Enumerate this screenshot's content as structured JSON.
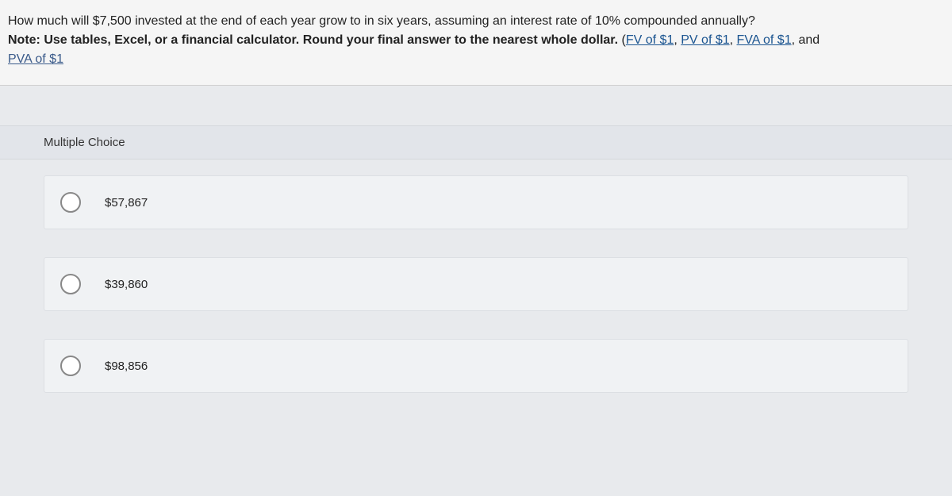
{
  "question": {
    "main_text": "How much will $7,500 invested at the end of each year grow to in six years, assuming an interest rate of 10% compounded annually?",
    "note_prefix": "Note: Use tables, Excel, or a financial calculator. Round your final answer to the nearest whole dollar.",
    "links": {
      "fv": "FV of $1",
      "pv": "PV of $1",
      "fva": "FVA of $1",
      "pva": "PVA of $1"
    },
    "separator": ", ",
    "and_text": "and",
    "open_paren": "(",
    "close_paren": ")"
  },
  "multiple_choice": {
    "header": "Multiple Choice",
    "options": [
      {
        "label": "$57,867"
      },
      {
        "label": "$39,860"
      },
      {
        "label": "$98,856"
      }
    ]
  },
  "colors": {
    "background": "#e8eaed",
    "question_bg": "#f5f5f5",
    "mc_header_bg": "#e2e5ea",
    "choice_bg": "#f0f2f4",
    "choice_border": "#dcdfe3",
    "link_color": "#1a5490",
    "text_color": "#222222",
    "radio_border": "#888888"
  }
}
